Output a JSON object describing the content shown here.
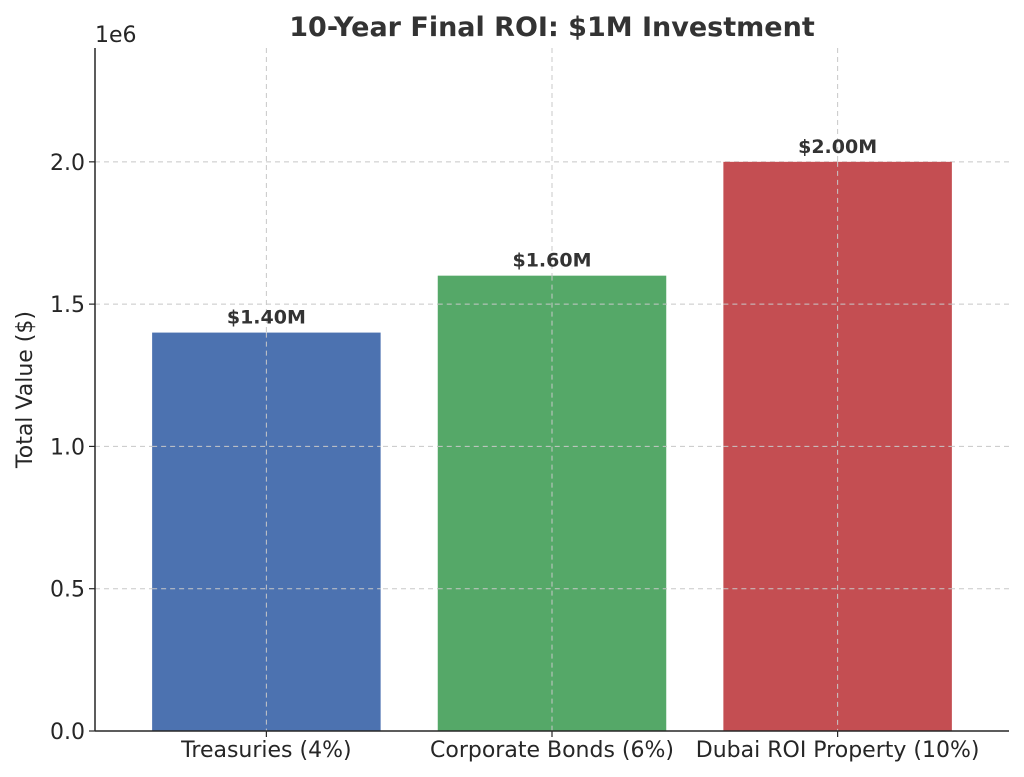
{
  "chart_data": {
    "type": "bar",
    "title": "10-Year Final ROI: $1M Investment",
    "xlabel": "",
    "ylabel": "Total Value ($)",
    "offset_label": "1e6",
    "categories": [
      "Treasuries (4%)",
      "Corporate Bonds (6%)",
      "Dubai ROI Property (10%)"
    ],
    "values": [
      1400000,
      1600000,
      2000000
    ],
    "data_labels": [
      "$1.40M",
      "$1.60M",
      "$2.00M"
    ],
    "colors": [
      "#4c72b0",
      "#55a868",
      "#c44e52"
    ],
    "ylim": [
      0,
      2400000
    ],
    "yticks": [
      0,
      500000,
      1000000,
      1500000,
      2000000
    ],
    "ytick_labels": [
      "0.0",
      "0.5",
      "1.0",
      "1.5",
      "2.0"
    ],
    "grid": true,
    "legend": "none"
  }
}
